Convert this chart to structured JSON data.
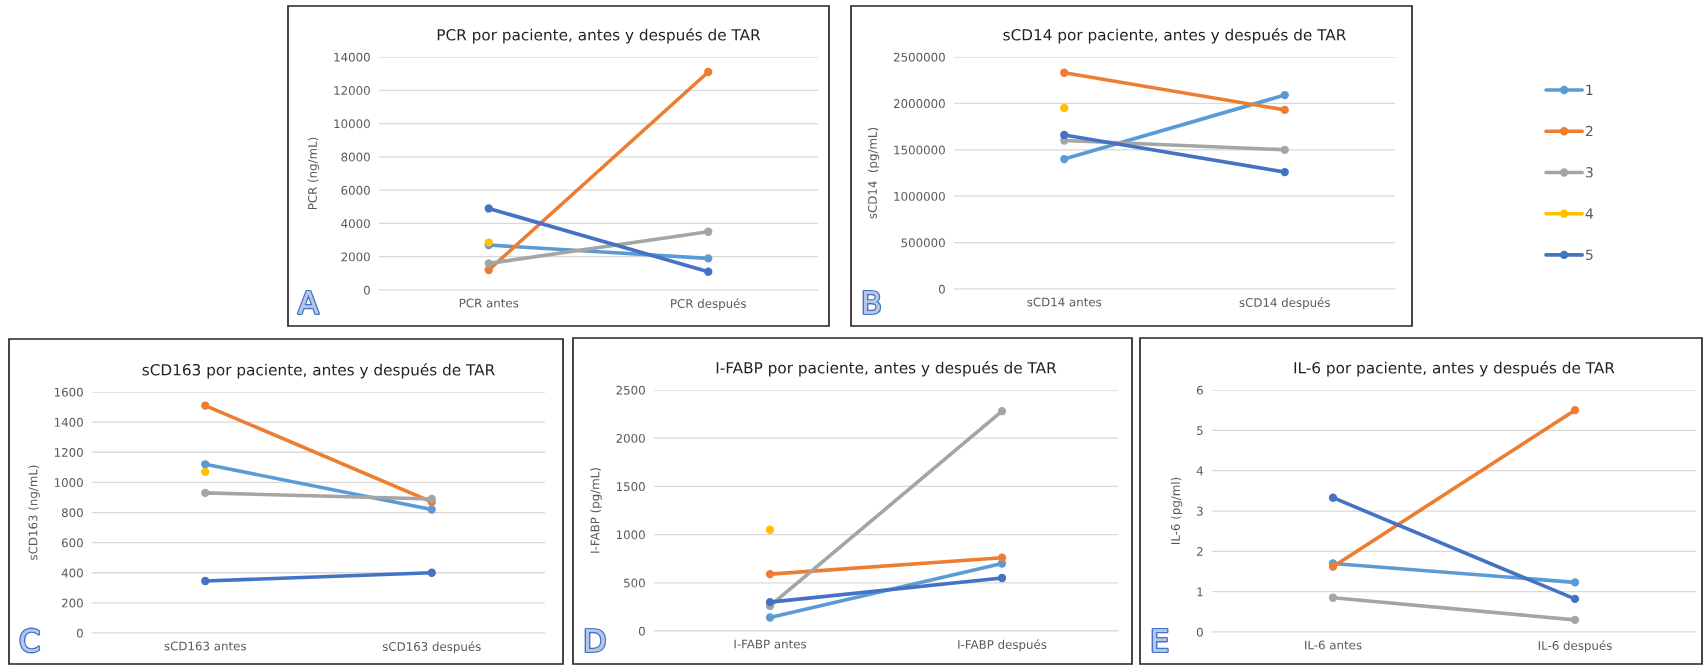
{
  "chart_data": [
    {
      "type": "line",
      "title": "PCR por paciente, antes y después de TAR",
      "ylabel": "PCR (ng/mL)",
      "categories": [
        "PCR antes",
        "PCR después"
      ],
      "ylim": [
        0,
        14000
      ],
      "yticks": [
        0,
        2000,
        4000,
        6000,
        8000,
        10000,
        12000,
        14000
      ],
      "grid": "y",
      "marker": "circle",
      "legend": "right",
      "annotations": [
        "A"
      ],
      "series": [
        {
          "name": "1",
          "color": "#5b9bd5",
          "values": [
            2700,
            1900
          ]
        },
        {
          "name": "2",
          "color": "#ed7d31",
          "values": [
            1200,
            13100
          ]
        },
        {
          "name": "3",
          "color": "#a5a5a5",
          "values": [
            1600,
            3500
          ]
        },
        {
          "name": "4",
          "color": "#ffc000",
          "values": [
            2850,
            null
          ]
        },
        {
          "name": "5",
          "color": "#4472c4",
          "values": [
            4900,
            1100
          ]
        }
      ]
    },
    {
      "type": "line",
      "title": "sCD14 por paciente, antes y después de TAR",
      "ylabel": "sCD14  (pg/mL)",
      "categories": [
        "sCD14 antes",
        "sCD14 después"
      ],
      "ylim": [
        0,
        2500000
      ],
      "yticks": [
        0,
        500000,
        1000000,
        1500000,
        2000000,
        2500000
      ],
      "grid": "y",
      "marker": "circle",
      "annotations": [
        "B"
      ],
      "series": [
        {
          "color": "#5b9bd5",
          "values": [
            1400000,
            2090000
          ]
        },
        {
          "color": "#ed7d31",
          "values": [
            2330000,
            1930000
          ]
        },
        {
          "color": "#a5a5a5",
          "values": [
            1600000,
            1500000
          ]
        },
        {
          "color": "#ffc000",
          "values": [
            1950000,
            null
          ]
        },
        {
          "color": "#4472c4",
          "values": [
            1660000,
            1260000
          ]
        }
      ]
    },
    {
      "type": "line",
      "title": "sCD163 por paciente, antes y después de TAR",
      "ylabel": "sCD163 (ng/mL)",
      "categories": [
        "sCD163 antes",
        "sCD163 después"
      ],
      "ylim": [
        0,
        1600
      ],
      "yticks": [
        0,
        200,
        400,
        600,
        800,
        1000,
        1200,
        1400,
        1600
      ],
      "grid": "y",
      "marker": "circle",
      "legend": false,
      "annotations": [
        "C"
      ],
      "series": [
        {
          "color": "#5b9bd5",
          "values": [
            1120,
            820
          ]
        },
        {
          "color": "#ed7d31",
          "values": [
            1510,
            870
          ]
        },
        {
          "color": "#a5a5a5",
          "values": [
            930,
            890
          ]
        },
        {
          "color": "#ffc000",
          "values": [
            1070,
            null
          ]
        },
        {
          "color": "#4472c4",
          "values": [
            345,
            400
          ]
        }
      ]
    },
    {
      "type": "line",
      "title": "I-FABP por paciente, antes y después de TAR",
      "ylabel": "I-FABP (pg/mL)",
      "categories": [
        "I-FABP antes",
        "I-FABP después"
      ],
      "ylim": [
        0,
        2500
      ],
      "yticks": [
        0,
        500,
        1000,
        1500,
        2000,
        2500
      ],
      "grid": "y",
      "marker": "circle",
      "legend": false,
      "annotations": [
        "D"
      ],
      "series": [
        {
          "color": "#5b9bd5",
          "values": [
            140,
            700
          ]
        },
        {
          "color": "#ed7d31",
          "values": [
            590,
            760
          ]
        },
        {
          "color": "#a5a5a5",
          "values": [
            260,
            2280
          ]
        },
        {
          "color": "#ffc000",
          "values": [
            1050,
            null
          ]
        },
        {
          "color": "#4472c4",
          "values": [
            300,
            550
          ]
        }
      ]
    },
    {
      "type": "line",
      "title": "IL-6 por paciente, antes y después de TAR",
      "ylabel": "IL-6 (pg/ml)",
      "categories": [
        "IL-6 antes",
        "IL-6 después"
      ],
      "ylim": [
        0,
        6
      ],
      "yticks": [
        0,
        1,
        2,
        3,
        4,
        5,
        6
      ],
      "grid": "y",
      "marker": "circle",
      "legend": false,
      "annotations": [
        "E"
      ],
      "series": [
        {
          "color": "#5b9bd5",
          "values": [
            1.7,
            1.23
          ]
        },
        {
          "color": "#ed7d31",
          "values": [
            1.62,
            5.5
          ]
        },
        {
          "color": "#a5a5a5",
          "values": [
            0.85,
            0.3
          ]
        },
        {
          "color": "#4472c4",
          "values": [
            3.33,
            0.82
          ]
        }
      ]
    }
  ]
}
